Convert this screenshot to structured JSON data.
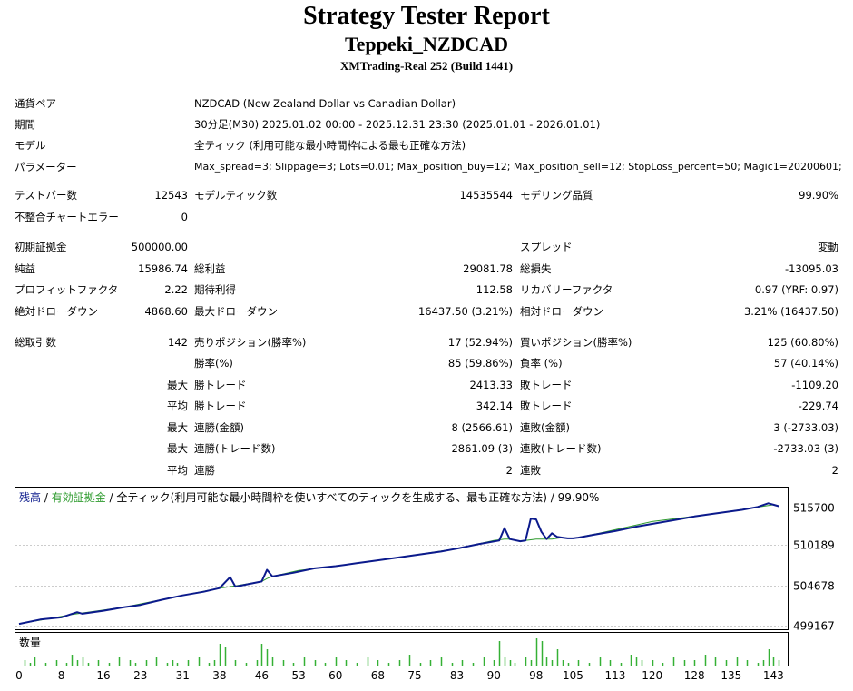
{
  "report": {
    "title": "Strategy Tester Report",
    "ea_name": "Teppeki_NZDCAD",
    "server": "XMTrading-Real 252 (Build 1441)"
  },
  "settings": [
    {
      "label": "通貨ペア",
      "value": "NZDCAD (New Zealand Dollar vs Canadian Dollar)"
    },
    {
      "label": "期間",
      "value": "30分足(M30) 2025.01.02 00:00 - 2025.12.31 23:30 (2025.01.01 - 2026.01.01)"
    },
    {
      "label": "モデル",
      "value": "全ティック (利用可能な最小時間枠による最も正確な方法)"
    },
    {
      "label": "パラメーター",
      "value": "Max_spread=3; Slippage=3; Lots=0.01; Max_position_buy=12; Max_position_sell=12; StopLoss_percent=50; Magic1=20200601;"
    }
  ],
  "stats": {
    "bars_label": "テストバー数",
    "bars": "12543",
    "ticks_label": "モデルティック数",
    "ticks": "14535544",
    "quality_label": "モデリング品質",
    "quality": "99.90%",
    "mismatch_label": "不整合チャートエラー",
    "mismatch": "0",
    "deposit_label": "初期証拠金",
    "deposit": "500000.00",
    "spread_label": "スプレッド",
    "spread": "変動",
    "net_label": "純益",
    "net": "15986.74",
    "gross_profit_label": "総利益",
    "gross_profit": "29081.78",
    "gross_loss_label": "総損失",
    "gross_loss": "-13095.03",
    "pf_label": "プロフィットファクタ",
    "pf": "2.22",
    "expected_label": "期待利得",
    "expected": "112.58",
    "recovery_label": "リカバリーファクタ",
    "recovery": "0.97 (YRF: 0.97)",
    "abs_dd_label": "絶対ドローダウン",
    "abs_dd": "4868.60",
    "max_dd_label": "最大ドローダウン",
    "max_dd": "16437.50 (3.21%)",
    "rel_dd_label": "相対ドローダウン",
    "rel_dd": "3.21% (16437.50)",
    "trades_label": "総取引数",
    "trades": "142",
    "short_label": "売りポジション(勝率%)",
    "short": "17 (52.94%)",
    "long_label": "買いポジション(勝率%)",
    "long": "125 (60.80%)",
    "winrate_label": "勝率(%)",
    "winrate": "85 (59.86%)",
    "lossrate_label": "負率 (%)",
    "lossrate": "57 (40.14%)",
    "max_label": "最大",
    "avg_label": "平均",
    "win_trade_label": "勝トレード",
    "loss_trade_label": "敗トレード",
    "largest_win": "2413.33",
    "largest_loss": "-1109.20",
    "avg_win": "342.14",
    "avg_loss": "-229.74",
    "cons_win_amt_label": "連勝(金額)",
    "cons_win_amt": "8 (2566.61)",
    "cons_loss_amt_label": "連敗(金額)",
    "cons_loss_amt": "3 (-2733.03)",
    "cons_win_cnt_label": "連勝(トレード数)",
    "cons_win_cnt": "2861.09 (3)",
    "cons_loss_cnt_label": "連敗(トレード数)",
    "cons_loss_cnt": "-2733.03 (3)",
    "avg_cons_win_label": "連勝",
    "avg_cons_win": "2",
    "avg_cons_loss_label": "連敗",
    "avg_cons_loss": "2"
  },
  "chart_data": {
    "type": "line",
    "legend_balance": "残高",
    "legend_sep": " / ",
    "legend_equity": "有効証拠金",
    "legend_rest": " / 全ティック(利用可能な最小時間枠を使いすべてのティックを生成する、最も正確な方法) / 99.90%",
    "volume_label": "数量",
    "ylim": [
      499167,
      517300
    ],
    "y_ticks": [
      "515700",
      "510189",
      "504678",
      "499167"
    ],
    "y_tick_values": [
      515700,
      510189,
      504678,
      499167
    ],
    "x_ticks": [
      "0",
      "8",
      "16",
      "23",
      "31",
      "38",
      "46",
      "53",
      "60",
      "68",
      "75",
      "83",
      "90",
      "98",
      "105",
      "113",
      "120",
      "128",
      "135",
      "143"
    ],
    "x_tick_values": [
      0,
      8,
      16,
      23,
      31,
      38,
      46,
      53,
      60,
      68,
      75,
      83,
      90,
      98,
      105,
      113,
      120,
      128,
      135,
      143
    ],
    "xlim": [
      0,
      145
    ],
    "colors": {
      "balance": "#0b1a8c",
      "equity": "#2e9b2e",
      "volume": "#35b035"
    },
    "series": [
      {
        "name": "残高",
        "x": [
          0,
          4,
          8,
          11,
          12,
          16,
          20,
          23,
          27,
          31,
          35,
          38,
          40,
          41,
          46,
          47,
          48,
          52,
          56,
          60,
          64,
          68,
          72,
          76,
          80,
          83,
          87,
          91,
          92,
          93,
          95,
          96,
          97,
          98,
          99,
          100,
          101,
          102,
          103,
          104,
          105,
          106,
          109,
          113,
          117,
          121,
          125,
          128,
          132,
          137,
          140,
          142,
          143,
          144
        ],
        "y": [
          499400,
          500000,
          500300,
          501000,
          500800,
          501200,
          501700,
          502000,
          502700,
          503300,
          503800,
          504300,
          505800,
          504500,
          505200,
          506800,
          505900,
          506400,
          507000,
          507300,
          507700,
          508100,
          508500,
          508900,
          509300,
          509700,
          510300,
          510800,
          512500,
          511000,
          510700,
          510800,
          513800,
          513700,
          512000,
          511000,
          511800,
          511300,
          511200,
          511100,
          511100,
          511200,
          511600,
          512100,
          512700,
          513200,
          513700,
          514100,
          514500,
          515000,
          515400,
          515900,
          515700,
          515500
        ]
      },
      {
        "name": "有効証拠金",
        "x": [
          0,
          10,
          20,
          31,
          38,
          40,
          41,
          46,
          47,
          48,
          53,
          60,
          70,
          83,
          90,
          92,
          93,
          95,
          96,
          97,
          98,
          99,
          100,
          101,
          102,
          103,
          104,
          105,
          110,
          120,
          130,
          143,
          144
        ],
        "y": [
          499400,
          500700,
          501700,
          503300,
          504300,
          504500,
          504600,
          505200,
          505600,
          505900,
          506700,
          507300,
          508300,
          509700,
          510800,
          511000,
          511000,
          510700,
          510800,
          510900,
          511000,
          511000,
          511000,
          511000,
          511100,
          511200,
          511100,
          511100,
          511800,
          513400,
          514300,
          515700,
          515500
        ]
      }
    ],
    "volume": {
      "x": [
        1,
        2,
        3,
        5,
        7,
        9,
        10,
        11,
        12,
        13,
        15,
        17,
        19,
        21,
        22,
        24,
        26,
        28,
        29,
        30,
        32,
        34,
        36,
        37,
        38,
        39,
        41,
        43,
        45,
        46,
        47,
        48,
        50,
        52,
        54,
        56,
        58,
        60,
        62,
        64,
        66,
        68,
        70,
        72,
        74,
        76,
        78,
        80,
        82,
        84,
        86,
        88,
        90,
        91,
        92,
        93,
        94,
        96,
        97,
        98,
        99,
        100,
        101,
        102,
        103,
        104,
        106,
        108,
        110,
        112,
        114,
        116,
        117,
        118,
        120,
        122,
        124,
        126,
        128,
        130,
        132,
        134,
        136,
        138,
        140,
        141,
        142,
        143,
        144
      ],
      "y": [
        2,
        1,
        3,
        1,
        2,
        1,
        4,
        2,
        3,
        1,
        2,
        1,
        3,
        2,
        1,
        2,
        3,
        1,
        2,
        1,
        2,
        3,
        1,
        2,
        8,
        7,
        2,
        1,
        2,
        8,
        6,
        3,
        2,
        1,
        3,
        2,
        1,
        3,
        2,
        1,
        3,
        2,
        1,
        2,
        4,
        1,
        2,
        3,
        1,
        2,
        1,
        3,
        2,
        9,
        3,
        2,
        1,
        3,
        2,
        10,
        9,
        3,
        2,
        6,
        2,
        1,
        2,
        1,
        3,
        2,
        1,
        4,
        3,
        2,
        2,
        1,
        3,
        2,
        2,
        4,
        3,
        2,
        3,
        2,
        1,
        2,
        6,
        3,
        2
      ]
    }
  }
}
